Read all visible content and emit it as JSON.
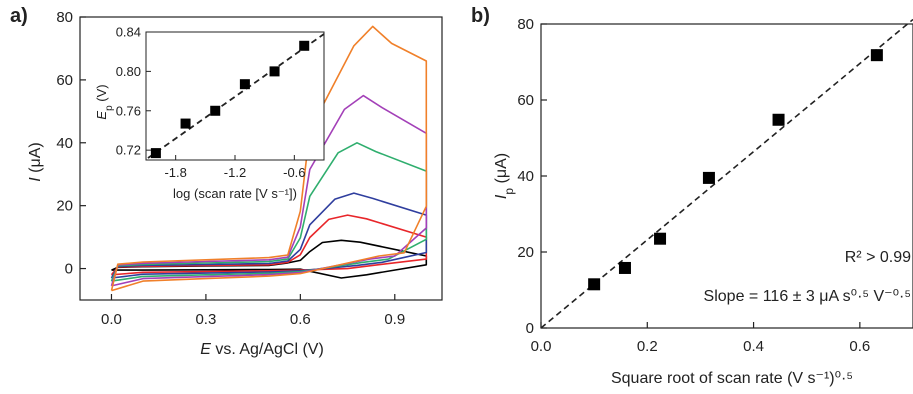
{
  "chart_data": [
    {
      "panel_label": "a)",
      "type": "line",
      "xlabel_main": "E",
      "xlabel_rest": " vs. Ag/AgCl (V)",
      "ylabel_main": "I",
      "ylabel_rest": " (μA)",
      "xlim": [
        -0.1,
        1.05
      ],
      "ylim": [
        -10,
        80
      ],
      "xticks": [
        "0.0",
        "0.3",
        "0.6",
        "0.9"
      ],
      "yticks": [
        "0",
        "20",
        "40",
        "60",
        "80"
      ],
      "series": [
        {
          "color": "#000000",
          "E_end": 1.0,
          "peak_E": 0.73,
          "peak_I": 9,
          "end_I": 4,
          "base_upper": 1.0,
          "base_lower": -0.5,
          "start_I": -0.5,
          "ret_E": 0.73,
          "ret_I": -3
        },
        {
          "color": "#e8262a",
          "E_end": 1.0,
          "peak_E": 0.75,
          "peak_I": 17,
          "end_I": 10,
          "base_upper": 1.2,
          "base_lower": -1.2,
          "start_I": -2,
          "ret_E": 0.75,
          "ret_I": 0
        },
        {
          "color": "#2f3e9e",
          "E_end": 1.0,
          "peak_E": 0.77,
          "peak_I": 24,
          "end_I": 17,
          "base_upper": 1.6,
          "base_lower": -1.8,
          "start_I": -3,
          "ret_E": 0.78,
          "ret_I": 1
        },
        {
          "color": "#2fae6e",
          "E_end": 1.0,
          "peak_E": 0.78,
          "peak_I": 40,
          "end_I": 31,
          "base_upper": 2.2,
          "base_lower": -2.5,
          "start_I": -4,
          "ret_E": 0.8,
          "ret_I": 2
        },
        {
          "color": "#a340b8",
          "E_end": 1.0,
          "peak_E": 0.8,
          "peak_I": 55,
          "end_I": 43,
          "base_upper": 2.8,
          "base_lower": -3.2,
          "start_I": -5.5,
          "ret_E": 0.82,
          "ret_I": 3
        },
        {
          "color": "#f0802a",
          "E_end": 1.0,
          "peak_E": 0.83,
          "peak_I": 77,
          "end_I": 66,
          "base_upper": 3.5,
          "base_lower": -4,
          "start_I": -7,
          "ret_E": 0.85,
          "ret_I": 4
        }
      ],
      "inset": {
        "type": "scatter",
        "xlabel": "log (scan rate [V s⁻¹])",
        "ylabel_main": "E",
        "ylabel_sub": "p",
        "ylabel_rest": " (V)",
        "xlim": [
          -2.1,
          -0.3
        ],
        "ylim": [
          0.71,
          0.84
        ],
        "xticks": [
          "-1.8",
          "-1.2",
          "-0.6"
        ],
        "xtick_values": [
          -1.8,
          -1.2,
          -0.6
        ],
        "yticks": [
          "0.72",
          "0.76",
          "0.80",
          "0.84"
        ],
        "ytick_values": [
          0.72,
          0.76,
          0.8,
          0.84
        ],
        "x": [
          -2.0,
          -1.7,
          -1.4,
          -1.1,
          -0.8,
          -0.5
        ],
        "y": [
          0.717,
          0.747,
          0.76,
          0.787,
          0.8,
          0.826
        ],
        "fit_line": {
          "x": [
            -2.08,
            -0.3
          ],
          "y": [
            0.712,
            0.838
          ]
        }
      }
    },
    {
      "panel_label": "b)",
      "type": "scatter",
      "xlabel": "Square root of scan rate (V s⁻¹)⁰·⁵",
      "ylabel_main": "I",
      "ylabel_sub": "p",
      "ylabel_rest": " (μA)",
      "xlim": [
        0.0,
        0.7
      ],
      "ylim": [
        0,
        80
      ],
      "xticks": [
        "0.0",
        "0.2",
        "0.4",
        "0.6"
      ],
      "xtick_values": [
        0.0,
        0.2,
        0.4,
        0.6
      ],
      "yticks": [
        "0",
        "20",
        "40",
        "60",
        "80"
      ],
      "ytick_values": [
        0,
        20,
        40,
        60,
        80
      ],
      "x": [
        0.1,
        0.158,
        0.224,
        0.316,
        0.447,
        0.632
      ],
      "y": [
        11.5,
        15.8,
        23.5,
        39.5,
        54.8,
        71.8
      ],
      "fit_line": {
        "x": [
          0.0,
          0.7
        ],
        "y": [
          0.0,
          81.2
        ]
      },
      "annotation_r2": "R² > 0.99",
      "annotation_slope": "Slope = 116 ± 3 μA s⁰·⁵ V⁻⁰·⁵"
    }
  ]
}
